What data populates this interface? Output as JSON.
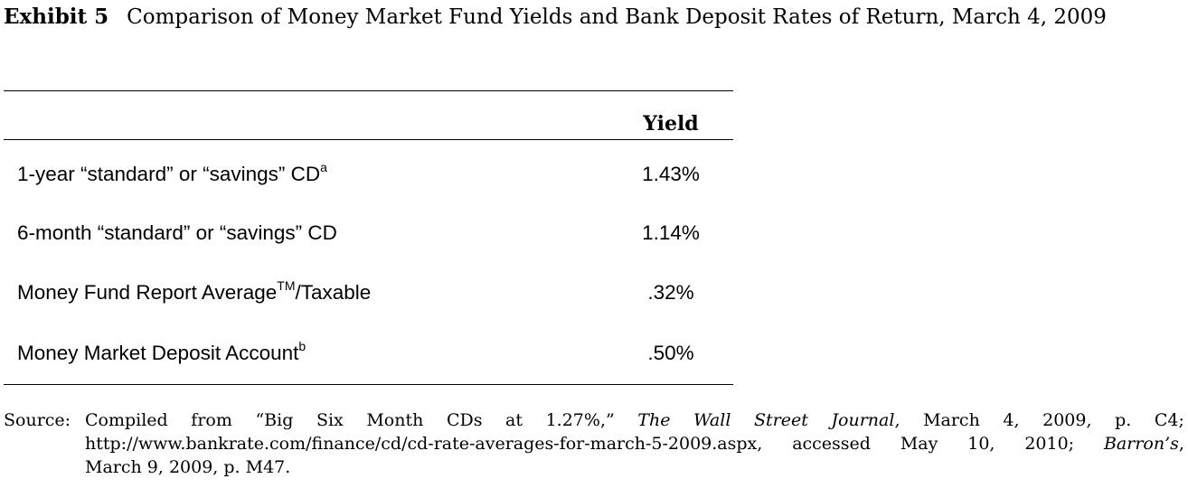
{
  "caption": {
    "label": "Exhibit 5",
    "title": "Comparison of Money Market Fund Yields and Bank Deposit Rates of Return, March 4, 2009"
  },
  "table": {
    "column_header": "Yield",
    "rows": [
      {
        "label": "1-year “standard” or “savings” CD",
        "sup": "a",
        "value": "1.43%"
      },
      {
        "label": "6-month “standard” or “savings” CD",
        "sup": "",
        "value": "1.14%"
      },
      {
        "label": "Money Fund Report Average",
        "sup": "TM",
        "label_suffix": "/Taxable",
        "value": ".32%"
      },
      {
        "label": "Money Market Deposit Account",
        "sup": "b",
        "value": ".50%"
      }
    ]
  },
  "source": {
    "label": "Source:",
    "line1_words": [
      "Compiled",
      "from",
      "“Big",
      "Six",
      "Month",
      "CDs",
      "at",
      "1.27%,”"
    ],
    "line1_journal": "The Wall Street Journal",
    "line1_tail_words": [
      ",",
      "March",
      "4,",
      "2009,",
      "p.",
      "C4;"
    ],
    "line2_url": "http://www.bankrate.com/finance/cd/cd-rate-averages-for-march-5-2009.aspx,",
    "line2_words": [
      "accessed",
      "May",
      "10,",
      "2010;"
    ],
    "line2_magazine": "Barron’s",
    "line2_tail": ",",
    "line3": "March 9, 2009, p. M47."
  }
}
